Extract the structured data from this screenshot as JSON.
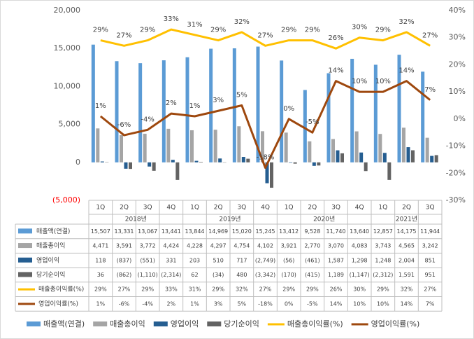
{
  "chart_data": {
    "type": "combo",
    "categories": [
      "1Q",
      "2Q",
      "3Q",
      "4Q",
      "1Q",
      "2Q",
      "3Q",
      "4Q",
      "1Q",
      "2Q",
      "3Q",
      "4Q",
      "1Q",
      "2Q",
      "3Q"
    ],
    "year_groups": [
      "2018년",
      "2019년",
      "2020년",
      "2021년"
    ],
    "series": [
      {
        "name": "매출액(연결)",
        "type": "bar",
        "color": "#5b9bd5",
        "values": [
          15507,
          13331,
          13067,
          13441,
          13844,
          14969,
          15020,
          15245,
          13412,
          9528,
          11740,
          13640,
          12857,
          14175,
          11944
        ],
        "value_labels": [
          "15,507",
          "13,331",
          "13,067",
          "13,441",
          "13,844",
          "14,969",
          "15,020",
          "15,245",
          "13,412",
          "9,528",
          "11,740",
          "13,640",
          "12,857",
          "14,175",
          "11,944"
        ]
      },
      {
        "name": "매출총이익",
        "type": "bar",
        "color": "#a5a5a5",
        "values": [
          4471,
          3591,
          3772,
          4424,
          4228,
          4297,
          4754,
          4102,
          3921,
          2770,
          3070,
          4083,
          3743,
          4565,
          3242
        ],
        "value_labels": [
          "4,471",
          "3,591",
          "3,772",
          "4,424",
          "4,228",
          "4,297",
          "4,754",
          "4,102",
          "3,921",
          "2,770",
          "3,070",
          "4,083",
          "3,743",
          "4,565",
          "3,242"
        ]
      },
      {
        "name": "영업이익",
        "type": "bar",
        "color": "#255e91",
        "values": [
          118,
          -837,
          -551,
          331,
          203,
          510,
          717,
          -2749,
          -56,
          -461,
          1587,
          1298,
          1248,
          2004,
          851
        ],
        "value_labels": [
          "118",
          "(837)",
          "(551)",
          "331",
          "203",
          "510",
          "717",
          "(2,749)",
          "(56)",
          "(461)",
          "1,587",
          "1,298",
          "1,248",
          "2,004",
          "851"
        ]
      },
      {
        "name": "당기순이익",
        "type": "bar",
        "color": "#636363",
        "values": [
          36,
          -862,
          -1110,
          -2314,
          62,
          -34,
          480,
          -3342,
          -170,
          -415,
          1189,
          -1147,
          -2312,
          1591,
          951
        ],
        "value_labels": [
          "36",
          "(862)",
          "(1,110)",
          "(2,314)",
          "62",
          "(34)",
          "480",
          "(3,342)",
          "(170)",
          "(415)",
          "1,189",
          "(1,147)",
          "(2,312)",
          "1,591",
          "951"
        ]
      },
      {
        "name": "매출총이익률(%)",
        "type": "line",
        "axis": "y2",
        "color": "#ffc000",
        "values": [
          29,
          27,
          29,
          33,
          31,
          29,
          32,
          27,
          29,
          29,
          26,
          30,
          29,
          32,
          27
        ],
        "value_labels": [
          "29%",
          "27%",
          "29%",
          "33%",
          "31%",
          "29%",
          "32%",
          "27%",
          "29%",
          "29%",
          "26%",
          "30%",
          "29%",
          "32%",
          "27%"
        ]
      },
      {
        "name": "영업이익률(%)",
        "type": "line",
        "axis": "y2",
        "color": "#9e480e",
        "values": [
          1,
          -6,
          -4,
          2,
          1,
          3,
          5,
          -18,
          0,
          -5,
          14,
          10,
          10,
          14,
          7
        ],
        "value_labels": [
          "1%",
          "-6%",
          "-4%",
          "2%",
          "1%",
          "3%",
          "5%",
          "-18%",
          "0%",
          "-5%",
          "14%",
          "10%",
          "10%",
          "14%",
          "7%"
        ]
      }
    ],
    "ylim": [
      -5000,
      20000
    ],
    "yticks": [
      {
        "value": -5000,
        "label": "(5,000)"
      },
      0,
      {
        "value": 5000,
        "label": "5,000"
      },
      {
        "value": 10000,
        "label": "10,000"
      },
      {
        "value": 15000,
        "label": "15,000"
      },
      {
        "value": 20000,
        "label": "20,000"
      }
    ],
    "ytick_negative_color": "#ff0000",
    "y2lim": [
      -30,
      40
    ],
    "y2ticks": [
      {
        "value": -30,
        "label": "-30%"
      },
      {
        "value": -20,
        "label": "-20%"
      },
      {
        "value": -10,
        "label": "-10%"
      },
      {
        "value": 0,
        "label": "0%"
      },
      {
        "value": 10,
        "label": "10%"
      },
      {
        "value": 20,
        "label": "20%"
      },
      {
        "value": 30,
        "label": "30%"
      },
      {
        "value": 40,
        "label": "40%"
      }
    ],
    "legend": "bottom",
    "data_table": true
  }
}
